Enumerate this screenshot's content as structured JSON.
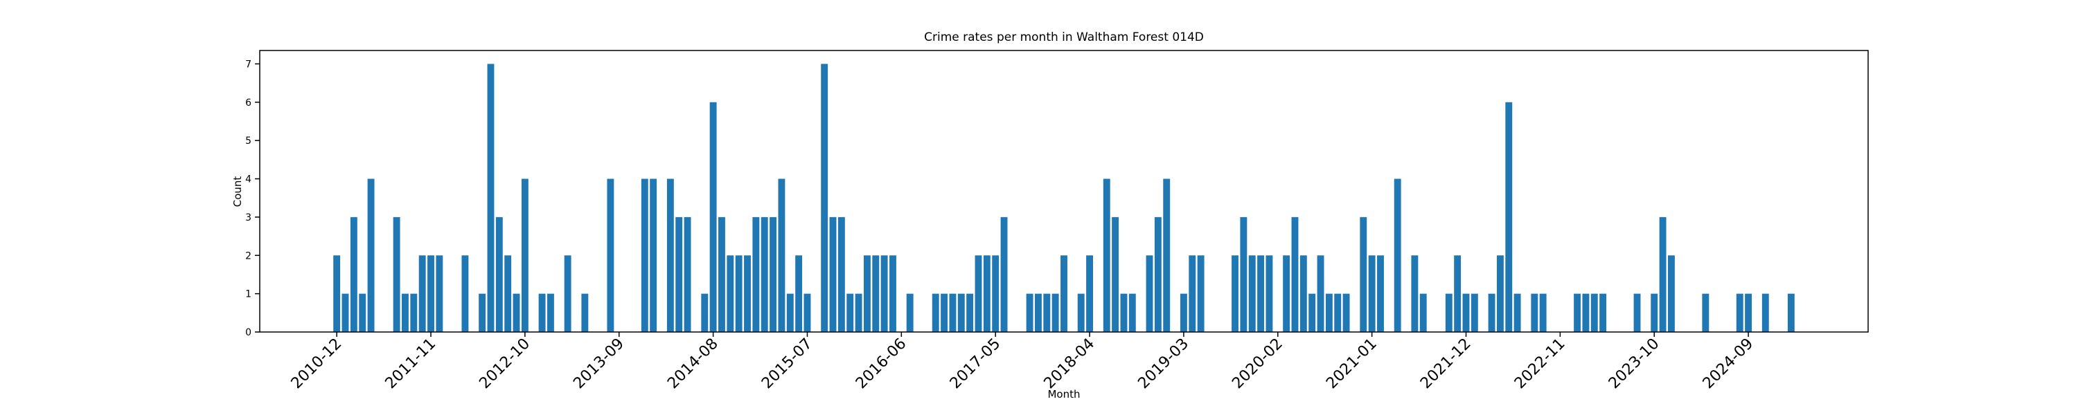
{
  "chart_data": {
    "type": "bar",
    "title": "Crime rates per month in Waltham Forest 014D",
    "x_label": "Month",
    "y_label": "Count",
    "color": "#1f77b4",
    "x": [
      "2010-12",
      "2011-01",
      "2011-02",
      "2011-03",
      "2011-04",
      "2011-07",
      "2011-08",
      "2011-09",
      "2011-10",
      "2011-11",
      "2011-12",
      "2012-03",
      "2012-05",
      "2012-06",
      "2012-07",
      "2012-08",
      "2012-09",
      "2012-10",
      "2012-12",
      "2013-01",
      "2013-03",
      "2013-05",
      "2013-08",
      "2013-12",
      "2014-01",
      "2014-03",
      "2014-04",
      "2014-05",
      "2014-07",
      "2014-08",
      "2014-09",
      "2014-10",
      "2014-11",
      "2014-12",
      "2015-01",
      "2015-02",
      "2015-03",
      "2015-04",
      "2015-05",
      "2015-06",
      "2015-07",
      "2015-09",
      "2015-10",
      "2015-11",
      "2015-12",
      "2016-01",
      "2016-02",
      "2016-03",
      "2016-04",
      "2016-05",
      "2016-07",
      "2016-10",
      "2016-11",
      "2016-12",
      "2017-01",
      "2017-02",
      "2017-03",
      "2017-04",
      "2017-05",
      "2017-06",
      "2017-09",
      "2017-10",
      "2017-11",
      "2017-12",
      "2018-01",
      "2018-03",
      "2018-04",
      "2018-06",
      "2018-07",
      "2018-08",
      "2018-09",
      "2018-11",
      "2018-12",
      "2019-01",
      "2019-03",
      "2019-04",
      "2019-05",
      "2019-09",
      "2019-10",
      "2019-11",
      "2019-12",
      "2020-01",
      "2020-03",
      "2020-04",
      "2020-05",
      "2020-06",
      "2020-07",
      "2020-08",
      "2020-09",
      "2020-10",
      "2020-12",
      "2021-01",
      "2021-02",
      "2021-04",
      "2021-06",
      "2021-07",
      "2021-10",
      "2021-11",
      "2021-12",
      "2022-01",
      "2022-03",
      "2022-04",
      "2022-05",
      "2022-06",
      "2022-08",
      "2022-09",
      "2023-01",
      "2023-02",
      "2023-03",
      "2023-04",
      "2023-08",
      "2023-10",
      "2023-11",
      "2023-12",
      "2024-04",
      "2024-08",
      "2024-09",
      "2024-11",
      "2025-02"
    ],
    "values": [
      2,
      1,
      3,
      1,
      4,
      3,
      1,
      1,
      2,
      2,
      2,
      2,
      1,
      7,
      3,
      2,
      1,
      4,
      1,
      1,
      2,
      1,
      4,
      4,
      4,
      4,
      3,
      3,
      1,
      6,
      3,
      2,
      2,
      2,
      3,
      3,
      3,
      4,
      1,
      2,
      1,
      7,
      3,
      3,
      1,
      1,
      2,
      2,
      2,
      2,
      1,
      1,
      1,
      1,
      1,
      1,
      2,
      2,
      2,
      3,
      1,
      1,
      1,
      1,
      2,
      1,
      2,
      4,
      3,
      1,
      1,
      2,
      3,
      4,
      1,
      2,
      2,
      2,
      3,
      2,
      2,
      2,
      2,
      3,
      2,
      1,
      2,
      1,
      1,
      1,
      3,
      2,
      2,
      4,
      2,
      1,
      1,
      2,
      1,
      1,
      1,
      2,
      6,
      1,
      1,
      1,
      1,
      1,
      1,
      1,
      1,
      1,
      3,
      2,
      1,
      1,
      1,
      1,
      1
    ],
    "xlim": [
      "2010-03",
      "2025-11"
    ],
    "xticks": [
      "2010-12",
      "2011-11",
      "2012-10",
      "2013-09",
      "2014-08",
      "2015-07",
      "2016-06",
      "2017-05",
      "2018-04",
      "2019-03",
      "2020-02",
      "2021-01",
      "2021-12",
      "2022-11",
      "2023-10",
      "2024-09"
    ],
    "ylim": [
      0,
      7.35
    ],
    "yticks": [
      0,
      1,
      2,
      3,
      4,
      5,
      6,
      7
    ]
  }
}
